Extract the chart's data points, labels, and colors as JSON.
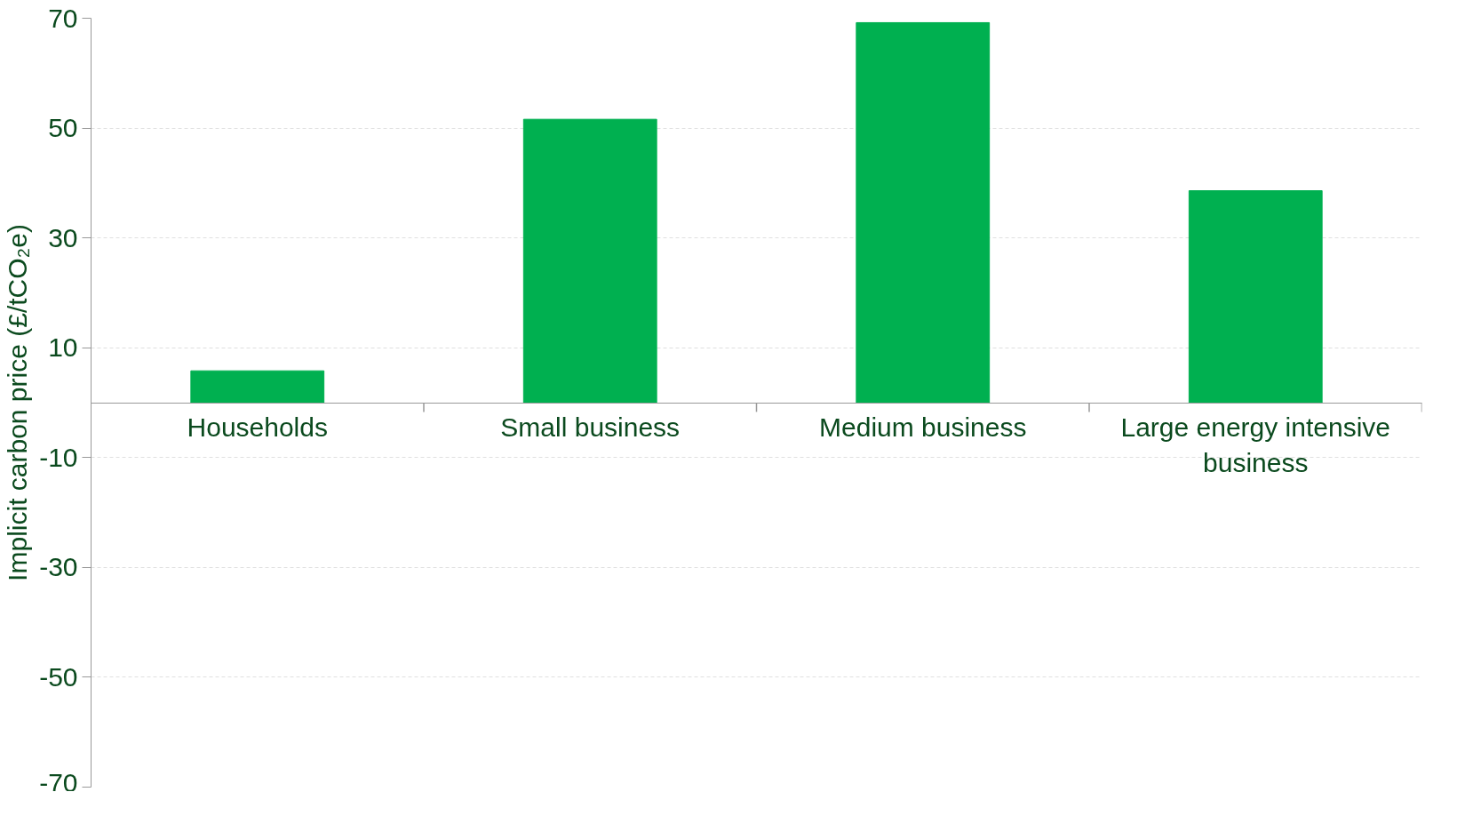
{
  "chart_data": {
    "type": "bar",
    "ylabel": "Implicit carbon price (£/tCO₂e)",
    "categories": [
      "Households",
      "Small business",
      "Medium business",
      "Large energy intensive business"
    ],
    "values": [
      5.8,
      51.6,
      69.2,
      38.6
    ],
    "color": "#00b050",
    "ylim": [
      -70,
      70
    ],
    "yticks": [
      -70,
      -50,
      -30,
      -10,
      10,
      30,
      50,
      70
    ],
    "grid": "y"
  }
}
